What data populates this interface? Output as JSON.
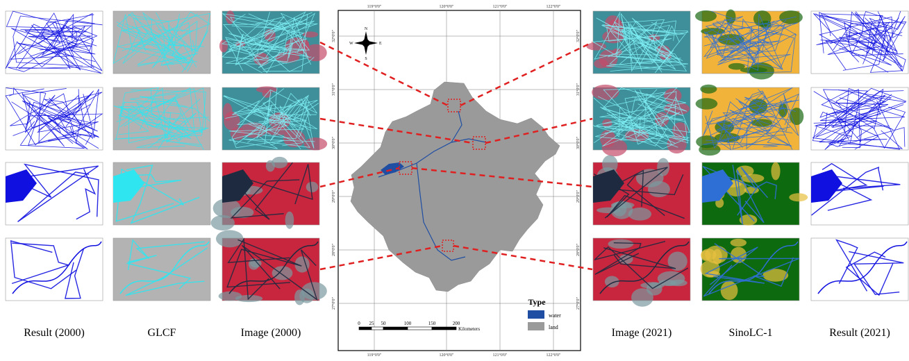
{
  "panels": {
    "left_labels": [
      "Result (2000)",
      "GLCF",
      "Image (2000)"
    ],
    "right_labels": [
      "Image (2021)",
      "SinoLC-1",
      "Result (2021)"
    ]
  },
  "map": {
    "lon_labels": [
      "119°0'0\"",
      "120°0'0\"",
      "121°0'0\"",
      "122°0'0\""
    ],
    "lat_labels": [
      "32°0'0\"",
      "31°0'0\"",
      "30°0'0\"",
      "29°0'0\"",
      "28°0'0\"",
      "27°0'0\""
    ],
    "compass": {
      "n": "N",
      "s": "S",
      "e": "E",
      "w": "W"
    },
    "scale_bar": {
      "ticks": [
        "0",
        "25",
        "50",
        "100",
        "150",
        "200"
      ],
      "unit": "Kilometers"
    },
    "legend": {
      "title": "Type",
      "items": [
        "water",
        "land"
      ]
    }
  }
}
